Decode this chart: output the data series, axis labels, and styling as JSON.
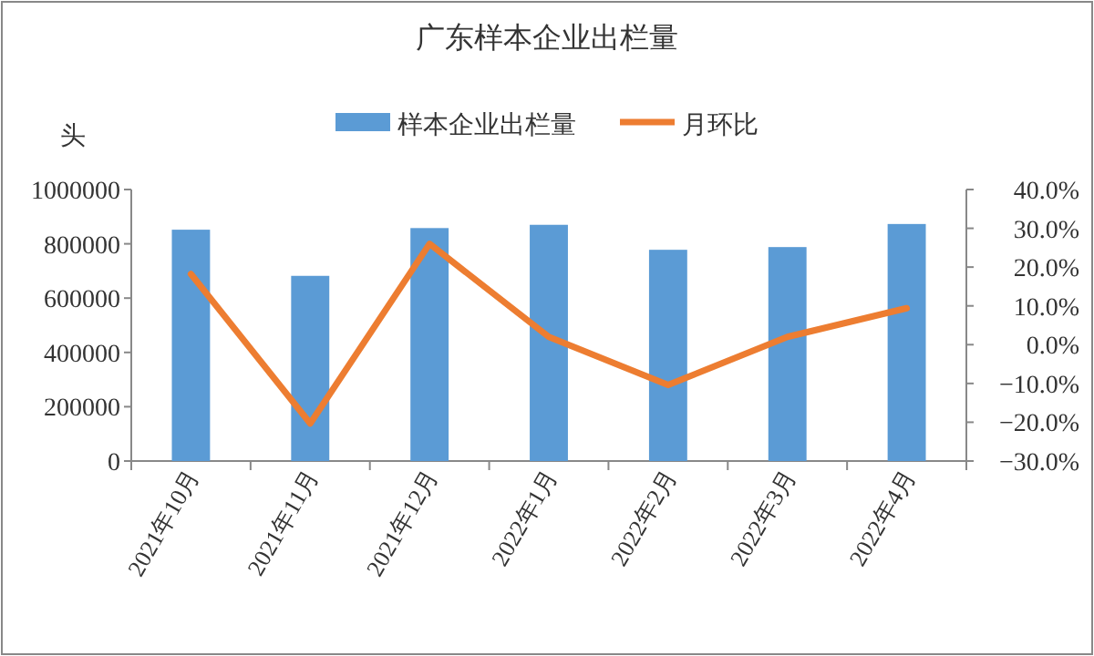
{
  "chart_data": {
    "type": "bar",
    "title": "广东样本企业出栏量",
    "ylabel": "头",
    "categories": [
      "2021年10月",
      "2021年11月",
      "2021年12月",
      "2022年1月",
      "2022年2月",
      "2022年3月",
      "2022年4月"
    ],
    "series": [
      {
        "name": "样本企业出栏量",
        "color": "#5b9bd5",
        "values": [
          852000,
          682000,
          858000,
          870000,
          778000,
          788000,
          873000
        ]
      },
      {
        "name": "月环比",
        "type": "line",
        "axis": "y2",
        "color": "#ed7d31",
        "values": [
          18.2,
          -20.3,
          26,
          2,
          -10.4,
          2,
          9.4
        ]
      }
    ],
    "ylim": [
      0,
      1000000
    ],
    "yticks": [
      0,
      200000,
      400000,
      600000,
      800000,
      1000000
    ],
    "y2lim": [
      -30,
      40
    ],
    "y2ticks": [
      {
        "value": -30,
        "label": "−30.0%"
      },
      {
        "value": -20,
        "label": "−20.0%"
      },
      {
        "value": -10,
        "label": "−10.0%"
      },
      {
        "value": 0,
        "label": "0.0%"
      },
      {
        "value": 10,
        "label": "10.0%"
      },
      {
        "value": 20,
        "label": "20.0%"
      },
      {
        "value": 30,
        "label": "30.0%"
      },
      {
        "value": 40,
        "label": "40.0%"
      }
    ],
    "legend": "top",
    "marker": "none"
  }
}
